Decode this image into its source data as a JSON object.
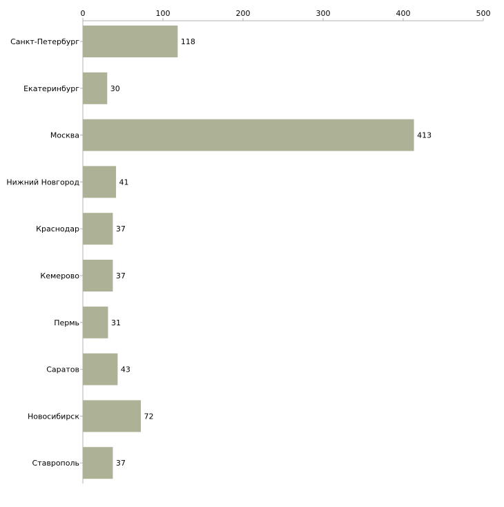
{
  "chart_data": {
    "type": "bar",
    "orientation": "horizontal",
    "title": "",
    "xlabel": "",
    "ylabel": "",
    "xlim": [
      0,
      500
    ],
    "x_ticks": [
      0,
      100,
      200,
      300,
      400,
      500
    ],
    "x_axis_position": "top",
    "grid": false,
    "legend": "none",
    "categories": [
      "Санкт-Петербург",
      "Екатеринбург",
      "Москва",
      "Нижний Новгород",
      "Краснодар",
      "Кемерово",
      "Пермь",
      "Саратов",
      "Новосибирск",
      "Ставрополь"
    ],
    "values": [
      118,
      30,
      413,
      41,
      37,
      37,
      31,
      43,
      72,
      37
    ],
    "bar_color": "#adb296",
    "axis_color": "#b0b0b0"
  }
}
